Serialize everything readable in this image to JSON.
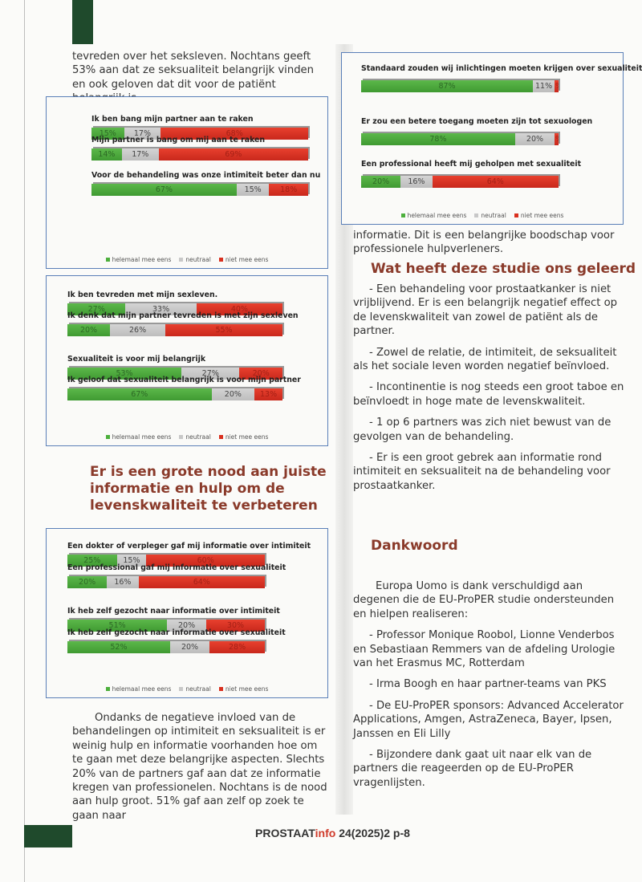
{
  "colors": {
    "agree": "#4caf3c",
    "neutral": "#c8c8c8",
    "disagree": "#d9301f",
    "heading": "#8a3a2a",
    "frame": "#5a7fb8"
  },
  "legend": [
    "helemaal mee eens",
    "neutraal",
    "niet mee eens"
  ],
  "left_intro": "tevreden over het seksleven. Nochtans geeft 53% aan dat ze seksualiteit belangrijk vinden en ook geloven dat dit voor de patiënt belangrijk is.",
  "charts": [
    {
      "items": [
        {
          "q": "Ik ben bang mijn partner aan te raken",
          "v": [
            15,
            17,
            68
          ],
          "l": [
            "15%",
            "17%",
            "68%"
          ]
        },
        {
          "q": "Mijn partner is bang om mij aan te raken",
          "v": [
            14,
            17,
            69
          ],
          "l": [
            "14%",
            "17%",
            "69%"
          ]
        },
        {
          "q": "Voor de behandeling was onze intimiteit beter dan nu",
          "v": [
            67,
            15,
            18
          ],
          "l": [
            "67%",
            "15%",
            "18%"
          ]
        }
      ]
    },
    {
      "items": [
        {
          "q": "Ik ben tevreden met mijn sexleven.",
          "v": [
            27,
            33,
            40
          ],
          "l": [
            "27%",
            "33%",
            "40%"
          ]
        },
        {
          "q": "Ik denk dat mijn partner tevreden is met zijn sexleven",
          "v": [
            20,
            26,
            55
          ],
          "l": [
            "20%",
            "26%",
            "55%"
          ]
        },
        {
          "q": "Sexualiteit is voor mij belangrijk",
          "v": [
            53,
            27,
            20
          ],
          "l": [
            "53%",
            "27%",
            "20%"
          ]
        },
        {
          "q": "Ik geloof dat sexualiteit belangrijk is voor mijn partner",
          "v": [
            67,
            20,
            13
          ],
          "l": [
            "67%",
            "20%",
            "13%"
          ]
        }
      ]
    },
    {
      "items": [
        {
          "q": "Een dokter of verpleger gaf mij informatie over intimiteit",
          "v": [
            25,
            15,
            60
          ],
          "l": [
            "25%",
            "15%",
            "60%"
          ]
        },
        {
          "q": "Een professional gaf mij informatie over sexualiteit",
          "v": [
            20,
            16,
            64
          ],
          "l": [
            "20%",
            "16%",
            "64%"
          ]
        },
        {
          "q": "Ik heb zelf gezocht naar informatie over intimiteit",
          "v": [
            51,
            20,
            30
          ],
          "l": [
            "51%",
            "20%",
            "30%"
          ]
        },
        {
          "q": "Ik heb zelf gezocht naar informatie over sexualiteit",
          "v": [
            52,
            20,
            28
          ],
          "l": [
            "52%",
            "20%",
            "28%"
          ]
        }
      ]
    },
    {
      "items": [
        {
          "q": "Standaard zouden wij inlichtingen moeten krijgen over sexualiteit",
          "v": [
            87,
            11,
            2
          ],
          "l": [
            "87%",
            "11%",
            "2%"
          ]
        },
        {
          "q": "Er zou een betere toegang moeten zijn tot sexuologen",
          "v": [
            78,
            20,
            2
          ],
          "l": [
            "78%",
            "20%",
            "2%"
          ]
        },
        {
          "q": "Een professional heeft mij geholpen met sexualiteit",
          "v": [
            20,
            16,
            64
          ],
          "l": [
            "20%",
            "16%",
            "64%"
          ]
        }
      ]
    }
  ],
  "left_heading": "Er is een grote nood aan juiste informatie en hulp om de levenskwaliteit te verbeteren",
  "left_para": "Ondanks de negatieve invloed van de behandelingen op intimiteit en seksualiteit is er weinig hulp en informatie voorhanden hoe om te gaan met deze belangrijke aspecten. Slechts 20% van de partners gaf aan dat ze informatie kregen van professionelen. Nochtans is de nood aan hulp groot. 51% gaf aan zelf op zoek te gaan naar",
  "right_cont": "informatie. Dit is een belangrijke boodschap voor professionele hulpverleners.",
  "right_heading": "Wat heeft deze studie ons geleerd",
  "lessons": [
    "-    Een behandeling voor prostaatkanker is niet vrijblijvend. Er is een belangrijk negatief effect op de levenskwaliteit van zowel de patiënt als de partner.",
    "-    Zowel de relatie, de intimiteit, de seksualiteit als het sociale leven worden negatief beïnvloed.",
    "-    Incontinentie is nog steeds een groot taboe en beïnvloedt in hoge mate de levenskwaliteit.",
    "-    1 op 6 partners was zich niet bewust van de gevolgen van de behandeling.",
    "-    Er is een groot gebrek aan informatie rond intimiteit en seksualiteit na de behandeling voor prostaatkanker."
  ],
  "thanks_heading": "Dankwoord",
  "thanks_intro": "Europa Uomo is dank verschuldigd aan degenen die de EU-ProPER studie ondersteunden en hielpen realiseren:",
  "thanks": [
    "-    Professor Monique Roobol, Lionne Venderbos en Sebastiaan Remmers van de afdeling Urologie van het Erasmus MC, Rotterdam",
    "-    Irma Boogh en haar partner-teams van PKS",
    "-    De EU-ProPER sponsors: Advanced Accelerator Applications, Amgen, AstraZeneca, Bayer, Ipsen, Janssen en Eli Lilly",
    "-    Bijzondere dank gaat uit naar elk van de partners die reageerden op de EU-ProPER vragenlijsten."
  ],
  "footer": {
    "brand": "PROSTAAT",
    "brand2": "info",
    "issue": " 24(2025)2 p-8"
  }
}
